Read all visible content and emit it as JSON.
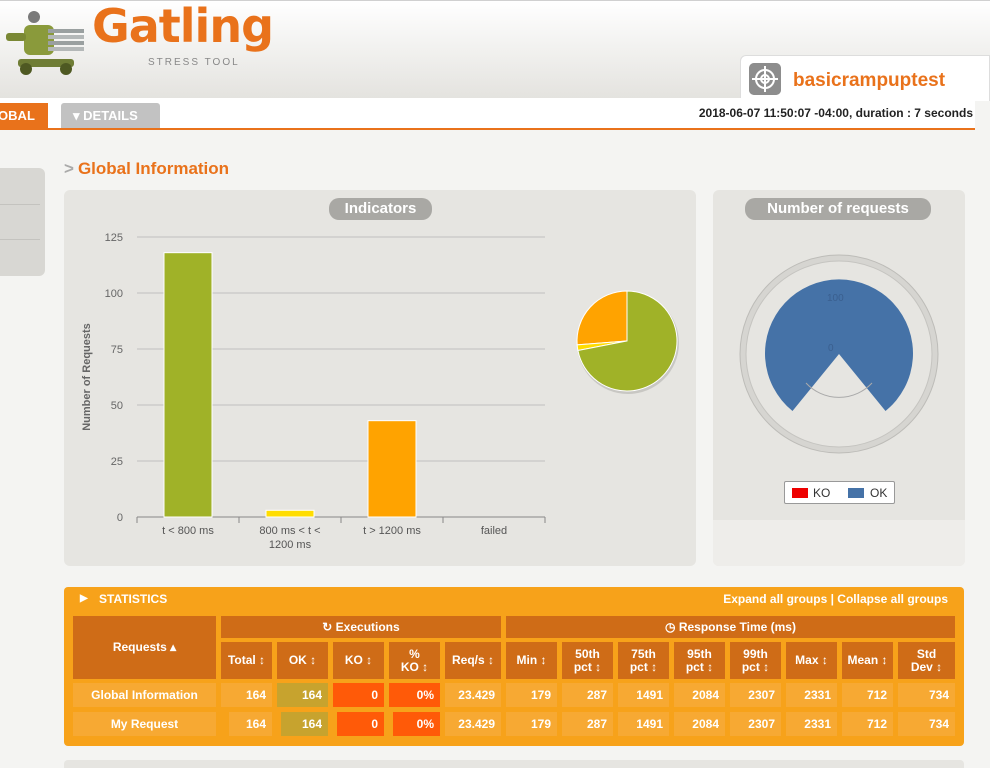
{
  "header": {
    "logo_text": "Gatling",
    "logo_subtitle": "STRESS TOOL",
    "simulation_name": "basicrampuptest"
  },
  "tabs": {
    "global": "GLOBAL",
    "details": "▾ DETAILS"
  },
  "run_info": "2018-06-07 11:50:07 -04:00, duration : 7 seconds",
  "section_title": "Global Information",
  "indicators_panel": {
    "title": "Indicators"
  },
  "requests_panel": {
    "title": "Number of requests",
    "gauge_labels": [
      "100",
      "0"
    ],
    "legend": [
      {
        "label": "KO",
        "color": "#ee0000"
      },
      {
        "label": "OK",
        "color": "#4572a7"
      }
    ]
  },
  "chart_data": [
    {
      "type": "bar",
      "ylabel": "Number of Requests",
      "ylim": [
        0,
        125
      ],
      "yticks": [
        0,
        25,
        50,
        75,
        100,
        125
      ],
      "categories": [
        "t < 800 ms",
        "800 ms < t < 1200 ms",
        "t > 1200 ms",
        "failed"
      ],
      "category_lines": [
        [
          "t < 800 ms"
        ],
        [
          "800 ms < t <",
          "1200 ms"
        ],
        [
          "t > 1200 ms"
        ],
        [
          "failed"
        ]
      ],
      "values": [
        118,
        3,
        43,
        0
      ],
      "colors": [
        "#a0b228",
        "#ffdd00",
        "#ffa300",
        "#ff0000"
      ],
      "grid": true
    },
    {
      "type": "pie",
      "values": [
        118,
        3,
        43,
        0
      ],
      "colors": [
        "#a0b228",
        "#ffdd00",
        "#ffa300",
        "#ff0000"
      ]
    }
  ],
  "statistics": {
    "title": "STATISTICS",
    "expand_label": "Expand all groups",
    "separator": " | ",
    "collapse_label": "Collapse all groups",
    "requests_header": "Requests ▴",
    "executions_header": "↻ Executions",
    "response_time_header": "◷ Response Time (ms)",
    "columns": [
      "Total ↕",
      "OK ↕",
      "KO ↕",
      "% KO ↕",
      "Req/s ↕",
      "Min ↕",
      "50th pct ↕",
      "75th pct ↕",
      "95th pct ↕",
      "99th pct ↕",
      "Max ↕",
      "Mean ↕",
      "Std Dev ↕"
    ],
    "rows": [
      {
        "name": "Global Information",
        "values": [
          "164",
          "164",
          "0",
          "0%",
          "23.429",
          "179",
          "287",
          "1491",
          "2084",
          "2307",
          "2331",
          "712",
          "734"
        ]
      },
      {
        "name": "My Request",
        "values": [
          "164",
          "164",
          "0",
          "0%",
          "23.429",
          "179",
          "287",
          "1491",
          "2084",
          "2307",
          "2331",
          "712",
          "734"
        ]
      }
    ]
  }
}
